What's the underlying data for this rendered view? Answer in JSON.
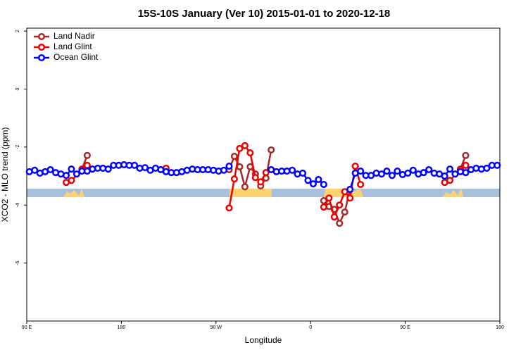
{
  "chart_data": {
    "type": "line",
    "title": "15S-10S January (Ver 10)   2015-01-01 to 2020-12-18",
    "x_label": "Longitude",
    "y_label": "XCO2 - MLO trend (ppm)",
    "xlim": [
      90,
      540
    ],
    "ylim": [
      -8,
      2.1
    ],
    "xticks": [
      {
        "value": 90,
        "label": "90 E"
      },
      {
        "value": 180,
        "label": "180"
      },
      {
        "value": 270,
        "label": "90 W"
      },
      {
        "value": 360,
        "label": "0"
      },
      {
        "value": 450,
        "label": "90 E"
      },
      {
        "value": 540,
        "label": "180"
      }
    ],
    "yticks": [
      -6,
      -4,
      -2,
      0,
      2
    ],
    "legend": "top-left",
    "series": [
      {
        "name": "Land Nadir",
        "color": "#a52a2a",
        "x": [
          142.5,
          147.5,
          215,
          282.5,
          287.5,
          292.5,
          297.5,
          302.5,
          307.5,
          312.5,
          317.5,
          322.5,
          345,
          372.5,
          377.5,
          382.5,
          387.5,
          392.5,
          397.5,
          450,
          502.5,
          507.5
        ],
        "values": [
          -2.76,
          -2.29,
          null,
          -2.78,
          -2.32,
          -2.68,
          -3.37,
          -2.68,
          -2.93,
          -3.34,
          -3.07,
          -2.1,
          null,
          -3.85,
          -4.05,
          -4.15,
          -4.63,
          -4.24,
          -3.46,
          null,
          -2.76,
          -2.29
        ]
      },
      {
        "name": "Land Glint",
        "color": "#ee0000",
        "x": [
          127.5,
          132.5,
          142.5,
          147.5,
          185,
          222.5,
          250,
          282.5,
          287.5,
          292.5,
          297.5,
          302.5,
          307.5,
          312.5,
          317.5,
          345,
          372.5,
          377.5,
          382.5,
          387.5,
          392.5,
          397.5,
          402.5,
          407.5,
          450,
          487.5,
          492.5,
          502.5,
          507.5
        ],
        "values": [
          -3.22,
          -3.15,
          -2.78,
          -2.63,
          null,
          -2.73,
          null,
          -4.1,
          -3.1,
          -2.05,
          -1.95,
          -2.2,
          -3.05,
          -3.2,
          -2.88,
          null,
          -4.07,
          -3.76,
          -4.41,
          -4.0,
          -3.54,
          -3.76,
          -2.66,
          -3.29,
          null,
          -3.22,
          -3.15,
          -2.78,
          -2.63
        ]
      },
      {
        "name": "Ocean Glint",
        "color": "#0000ff",
        "x": [
          92.5,
          97.5,
          102.5,
          107.5,
          112.5,
          117.5,
          122.5,
          127.5,
          132.5,
          137.5,
          142.5,
          147.5,
          152.5,
          157.5,
          162.5,
          167.5,
          172.5,
          177.5,
          182.5,
          187.5,
          192.5,
          197.5,
          202.5,
          207.5,
          212.5,
          217.5,
          222.5,
          227.5,
          232.5,
          237.5,
          242.5,
          247.5,
          252.5,
          257.5,
          262.5,
          267.5,
          272.5,
          277.5,
          282.5,
          302.5,
          322.5,
          327.5,
          332.5,
          337.5,
          342.5,
          347.5,
          352.5,
          357.5,
          362.5,
          367.5,
          372.5,
          385,
          397.5,
          402.5,
          407.5,
          412.5,
          417.5,
          422.5,
          427.5,
          432.5,
          437.5,
          442.5,
          447.5,
          452.5,
          457.5,
          462.5,
          467.5,
          472.5,
          477.5,
          482.5,
          487.5,
          492.5,
          497.5,
          502.5,
          507.5,
          512.5,
          517.5,
          522.5,
          527.5,
          532.5,
          537.5
        ],
        "values": [
          -2.85,
          -2.8,
          -2.9,
          -2.85,
          -2.78,
          -2.88,
          -2.93,
          -2.98,
          -2.76,
          -2.93,
          -2.83,
          -2.83,
          -2.76,
          -2.73,
          -2.73,
          -2.76,
          -2.63,
          -2.63,
          -2.61,
          -2.63,
          -2.63,
          -2.73,
          -2.71,
          -2.8,
          -2.73,
          -2.78,
          -2.85,
          -2.88,
          -2.88,
          -2.85,
          -2.8,
          -2.76,
          -2.78,
          -2.78,
          -2.78,
          -2.8,
          -2.83,
          -2.8,
          -2.66,
          null,
          -2.78,
          -2.85,
          -2.83,
          -2.83,
          -2.8,
          -2.93,
          -2.9,
          -3.15,
          -3.27,
          -3.12,
          -3.29,
          null,
          -3.46,
          -2.9,
          -2.83,
          -2.98,
          -2.98,
          -2.9,
          -2.93,
          -2.83,
          -2.98,
          -2.83,
          -2.95,
          -2.9,
          -2.8,
          -2.93,
          -2.88,
          -2.78,
          -2.9,
          -2.93,
          -3.0,
          -2.76,
          -2.93,
          -2.85,
          -2.88,
          -2.78,
          -2.73,
          -2.76,
          -2.73,
          -2.63,
          -2.63
        ]
      }
    ]
  }
}
